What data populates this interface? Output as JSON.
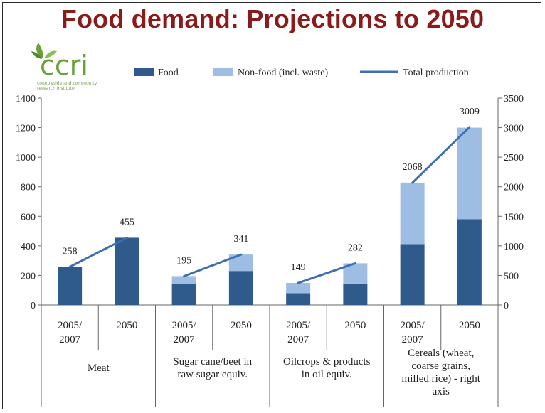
{
  "page": {
    "title": "Food demand: Projections to 2050",
    "logo_text": "ccri",
    "logo_tagline": "countryside and community research institute"
  },
  "colors": {
    "food": "#2e5a8c",
    "nonfood": "#9dbde3",
    "line": "#3f6fb0",
    "title": "#8b1a1a"
  },
  "chart_data": {
    "type": "bar",
    "stacked": true,
    "legend": [
      {
        "key": "food",
        "label": "Food"
      },
      {
        "key": "nonfood",
        "label": "Non-food (incl. waste)"
      },
      {
        "key": "total",
        "label": "Total production"
      }
    ],
    "groups": [
      {
        "label": "Meat",
        "axis": "left",
        "periods": [
          "2005/2007",
          "2050"
        ],
        "food": [
          255,
          455
        ],
        "nonfood": [
          5,
          0
        ],
        "total": [
          258,
          455
        ]
      },
      {
        "label": "Sugar cane/beet in raw sugar equiv.",
        "axis": "left",
        "periods": [
          "2005/2007",
          "2050"
        ],
        "food": [
          140,
          230
        ],
        "nonfood": [
          55,
          111
        ],
        "total": [
          195,
          341
        ]
      },
      {
        "label": "Oilcrops & products in oil equiv.",
        "axis": "left",
        "periods": [
          "2005/2007",
          "2050"
        ],
        "food": [
          80,
          145
        ],
        "nonfood": [
          69,
          137
        ],
        "total": [
          149,
          282
        ]
      },
      {
        "label": "Cereals (wheat, coarse grains, milled rice) - right axis",
        "axis": "right",
        "periods": [
          "2005/2007",
          "2050"
        ],
        "food": [
          1030,
          1450
        ],
        "nonfood": [
          1040,
          1550
        ],
        "total": [
          2068,
          3009
        ]
      }
    ],
    "y_left": {
      "min": 0,
      "max": 1400,
      "ticks": [
        "0",
        "200",
        "400",
        "600",
        "800",
        "1000",
        "1200",
        "1400"
      ]
    },
    "y_right": {
      "min": 0,
      "max": 3500,
      "ticks": [
        "0",
        "500",
        "1000",
        "1500",
        "2000",
        "2500",
        "3000",
        "3500"
      ]
    }
  }
}
